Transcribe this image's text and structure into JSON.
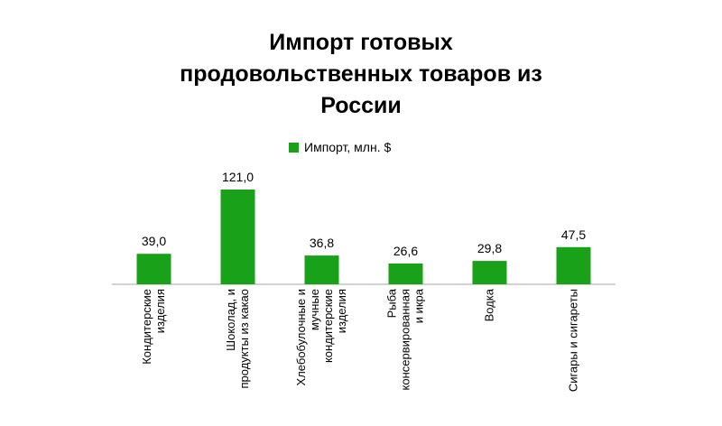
{
  "chart_data": {
    "type": "bar",
    "title": "Импорт готовых продовольственных товаров из России",
    "title_lines": [
      "Импорт готовых",
      "продовольственных товаров из",
      "России"
    ],
    "categories": [
      [
        "Кондитерские",
        "изделия"
      ],
      [
        "Шоколад, и",
        "продукты из какао"
      ],
      [
        "Хлебобулочные и",
        "мучные",
        "кондитерские",
        "изделия"
      ],
      [
        "Рыба",
        "консервированная",
        "и икра"
      ],
      [
        "Водка"
      ],
      [
        "Сигары и сигареты"
      ]
    ],
    "series": [
      {
        "name": "Импорт, млн. $",
        "values": [
          39.0,
          121.0,
          36.8,
          26.6,
          29.8,
          47.5
        ],
        "value_labels": [
          "39,0",
          "121,0",
          "36,8",
          "26,6",
          "29,8",
          "47,5"
        ]
      }
    ],
    "ylim": [
      0,
      140
    ],
    "xlabel": "",
    "ylabel": "",
    "grid": false,
    "legend_position": "top",
    "colors": {
      "bar": "#1aa11a",
      "axis": "#a6a6a6"
    }
  }
}
